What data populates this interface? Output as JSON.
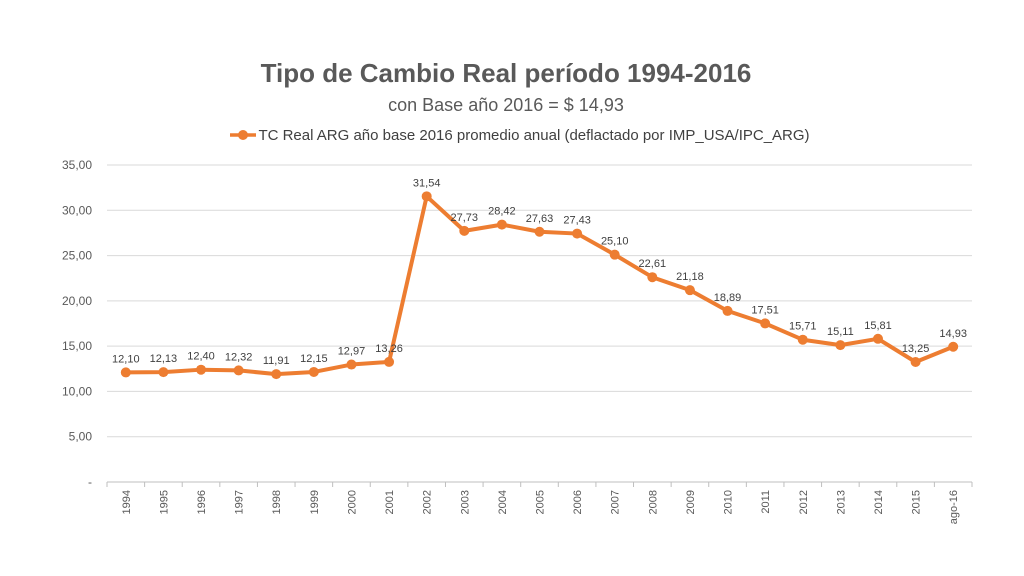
{
  "chart_data": {
    "type": "line",
    "title": "Tipo de Cambio Real período 1994-2016",
    "subtitle": "con Base año 2016 = $ 14,93",
    "categories": [
      "1994",
      "1995",
      "1996",
      "1997",
      "1998",
      "1999",
      "2000",
      "2001",
      "2002",
      "2003",
      "2004",
      "2005",
      "2006",
      "2007",
      "2008",
      "2009",
      "2010",
      "2011",
      "2012",
      "2013",
      "2014",
      "2015",
      "ago-16"
    ],
    "series": [
      {
        "name": "TC Real ARG año base 2016  promedio anual (deflactado por IMP_USA/IPC_ARG)",
        "values": [
          12.1,
          12.13,
          12.4,
          12.32,
          11.91,
          12.15,
          12.97,
          13.26,
          31.54,
          27.73,
          28.42,
          27.63,
          27.43,
          25.1,
          22.61,
          21.18,
          18.89,
          17.51,
          15.71,
          15.11,
          15.81,
          13.25,
          14.93
        ],
        "labels": [
          "12,10",
          "12,13",
          "12,40",
          "12,32",
          "11,91",
          "12,15",
          "12,97",
          "13,26",
          "31,54",
          "27,73",
          "28,42",
          "27,63",
          "27,43",
          "25,10",
          "22,61",
          "21,18",
          "18,89",
          "17,51",
          "15,71",
          "15,11",
          "15,81",
          "13,25",
          "14,93"
        ],
        "color": "#ED7D31"
      }
    ],
    "ylim": [
      0,
      35
    ],
    "yticks": [
      0,
      5,
      10,
      15,
      20,
      25,
      30,
      35
    ],
    "ytick_labels": [
      "-",
      "5,00",
      "10,00",
      "15,00",
      "20,00",
      "25,00",
      "30,00",
      "35,00"
    ],
    "grid": true,
    "legend_position": "top"
  }
}
